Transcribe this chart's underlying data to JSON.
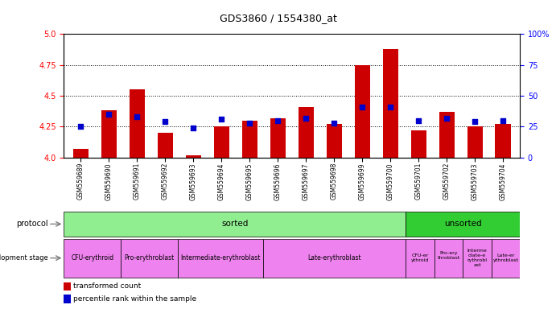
{
  "title": "GDS3860 / 1554380_at",
  "samples": [
    "GSM559689",
    "GSM559690",
    "GSM559691",
    "GSM559692",
    "GSM559693",
    "GSM559694",
    "GSM559695",
    "GSM559696",
    "GSM559697",
    "GSM559698",
    "GSM559699",
    "GSM559700",
    "GSM559701",
    "GSM559702",
    "GSM559703",
    "GSM559704"
  ],
  "transformed_count": [
    4.07,
    4.38,
    4.55,
    4.2,
    4.02,
    4.25,
    4.3,
    4.32,
    4.41,
    4.27,
    4.75,
    4.88,
    4.22,
    4.37,
    4.25,
    4.27
  ],
  "percentile_rank": [
    25,
    35,
    33,
    29,
    24,
    31,
    28,
    30,
    32,
    28,
    41,
    41,
    30,
    32,
    29,
    30
  ],
  "ylim_left": [
    4.0,
    5.0
  ],
  "ylim_right": [
    0,
    100
  ],
  "left_ticks": [
    4.0,
    4.25,
    4.5,
    4.75,
    5.0
  ],
  "right_ticks": [
    0,
    25,
    50,
    75,
    100
  ],
  "bar_color": "#cc0000",
  "dot_color": "#0000cc",
  "background_color": "#ffffff",
  "protocol_sorted_color": "#90ee90",
  "protocol_unsorted_color": "#32cd32",
  "dev_stage_color": "#ee82ee",
  "protocol_sorted_count": 12,
  "protocol_unsorted_count": 4,
  "dev_stages": [
    {
      "label": "CFU-erythroid",
      "start": 0,
      "end": 2,
      "group": "sorted"
    },
    {
      "label": "Pro-erythroblast",
      "start": 2,
      "end": 4,
      "group": "sorted"
    },
    {
      "label": "Intermediate-erythroblast",
      "start": 4,
      "end": 7,
      "group": "sorted"
    },
    {
      "label": "Late-erythroblast",
      "start": 7,
      "end": 12,
      "group": "sorted"
    },
    {
      "label": "CFU-er\nythroid",
      "start": 12,
      "end": 13,
      "group": "unsorted"
    },
    {
      "label": "Pro-ery\nthroblast\n",
      "start": 13,
      "end": 14,
      "group": "unsorted"
    },
    {
      "label": "Interme\ndiate-e\nrythrobl\nast",
      "start": 14,
      "end": 15,
      "group": "unsorted"
    },
    {
      "label": "Late-er\nythroblast",
      "start": 15,
      "end": 16,
      "group": "unsorted"
    }
  ],
  "legend_items": [
    {
      "label": "transformed count",
      "color": "#cc0000"
    },
    {
      "label": "percentile rank within the sample",
      "color": "#0000cc"
    }
  ]
}
